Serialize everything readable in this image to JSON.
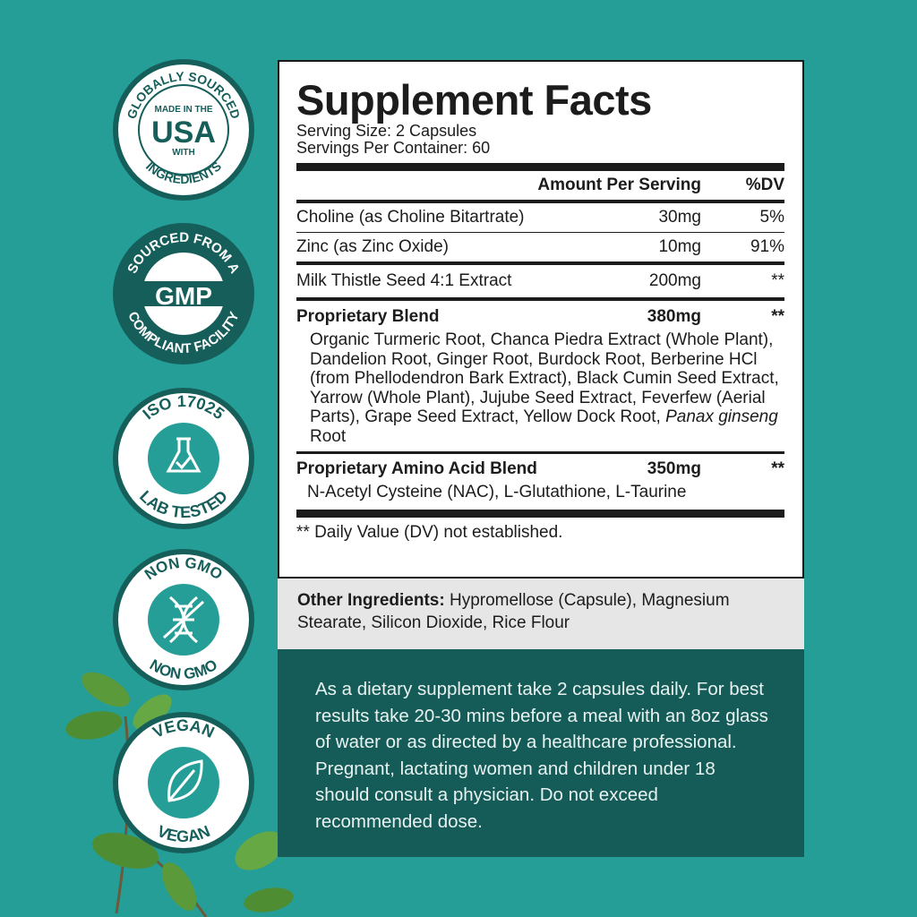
{
  "colors": {
    "background": "#259e97",
    "dark_teal": "#155b57",
    "badge_ring": "#165e5a"
  },
  "badges": [
    {
      "icon": "usa-badge",
      "top": "GLOBALLY SOURCED",
      "bottom": "INGREDIENTS",
      "line1": "MADE IN THE",
      "big": "USA",
      "line2": "WITH"
    },
    {
      "icon": "gmp-badge",
      "top": "SOURCED FROM A",
      "bottom": "COMPLIANT FACILITY",
      "big": "GMP"
    },
    {
      "icon": "flask-check-icon",
      "top": "ISO 17025",
      "bottom": "LAB TESTED"
    },
    {
      "icon": "dna-crossed-icon",
      "top": "NON GMO",
      "bottom": "NON GMO"
    },
    {
      "icon": "leaf-icon",
      "top": "VEGAN",
      "bottom": "VEGAN"
    }
  ],
  "facts": {
    "title": "Supplement Facts",
    "serving_size": "Serving Size: 2 Capsules",
    "servings_per_container": "Servings Per Container: 60",
    "header": {
      "amount": "Amount Per Serving",
      "dv": "%DV"
    },
    "rows": [
      {
        "name": "Choline (as Choline Bitartrate)",
        "amount": "30mg",
        "dv": "5%"
      },
      {
        "name": "Zinc (as Zinc Oxide)",
        "amount": "10mg",
        "dv": "91%"
      },
      {
        "name": "Milk Thistle Seed 4:1 Extract",
        "amount": "200mg",
        "dv": "**"
      }
    ],
    "blends": [
      {
        "name": "Proprietary Blend",
        "amount": "380mg",
        "dv": "**",
        "ingredients_a": "Organic Turmeric Root, Chanca Piedra Extract (Whole Plant), Dandelion Root, Ginger Root, Burdock Root, Berberine HCl (from Phellodendron Bark Extract), Black Cumin Seed Extract, Yarrow (Whole Plant), Jujube Seed Extract, Feverfew (Aerial Parts), Grape Seed Extract, Yellow Dock Root, ",
        "ingredients_italic": "Panax ginseng",
        "ingredients_b": " Root"
      },
      {
        "name": "Proprietary Amino Acid Blend",
        "amount": "350mg",
        "dv": "**",
        "ingredients_a": "N-Acetyl Cysteine (NAC), L-Glutathione, L-Taurine"
      }
    ],
    "footnote": "** Daily Value (DV) not established."
  },
  "other_ingredients": {
    "label": "Other Ingredients:",
    "text": " Hypromellose (Capsule), Magnesium Stearate, Silicon Dioxide, Rice Flour"
  },
  "directions": "As a dietary supplement take 2 capsules daily. For best results take 20-30 mins before a meal with an 8oz glass of water or as directed by a healthcare professional. Pregnant, lactating women and children under 18 should consult a physician. Do not exceed recommended dose."
}
